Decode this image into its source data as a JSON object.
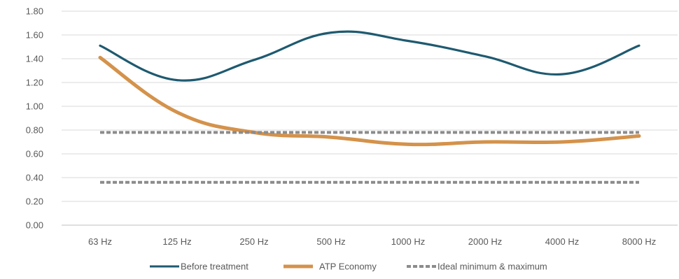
{
  "chart_data": {
    "type": "line",
    "categories": [
      "63 Hz",
      "125 Hz",
      "250 Hz",
      "500 Hz",
      "1000 Hz",
      "2000 Hz",
      "4000 Hz",
      "8000 Hz"
    ],
    "y_ticks": [
      "0.00",
      "0.20",
      "0.40",
      "0.60",
      "0.80",
      "1.00",
      "1.20",
      "1.40",
      "1.60",
      "1.80"
    ],
    "ylim": [
      0,
      1.8
    ],
    "grid": true,
    "legend_position": "bottom",
    "series": [
      {
        "name": "Before treatment",
        "values": [
          1.51,
          1.22,
          1.39,
          1.62,
          1.55,
          1.42,
          1.27,
          1.51
        ],
        "color": "#1e5a70",
        "style": "solid"
      },
      {
        "name": "ATP Economy",
        "values": [
          1.41,
          0.95,
          0.78,
          0.74,
          0.68,
          0.7,
          0.7,
          0.75
        ],
        "color": "#d4924b",
        "style": "solid-thick"
      },
      {
        "name": "Ideal minimum & maximum",
        "values": [
          0.78,
          0.78,
          0.78,
          0.78,
          0.78,
          0.78,
          0.78,
          0.78
        ],
        "values_min": [
          0.36,
          0.36,
          0.36,
          0.36,
          0.36,
          0.36,
          0.36,
          0.36
        ],
        "color": "#8c8c8c",
        "style": "dashed"
      }
    ]
  }
}
